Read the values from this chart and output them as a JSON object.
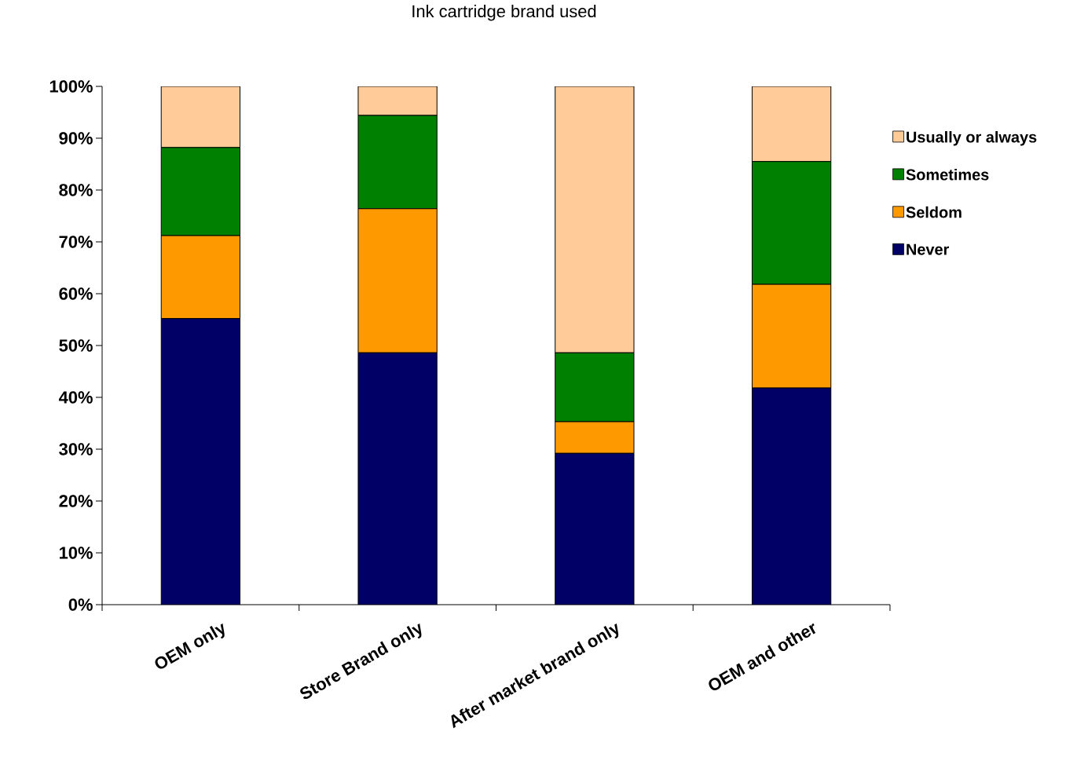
{
  "chart_data": {
    "type": "bar",
    "title": "Ink cartridge brand used",
    "stacked": true,
    "legend": "right",
    "categories": [
      "OEM only",
      "Store Brand only",
      "After market brand only",
      "OEM and other"
    ],
    "series": [
      {
        "name": "Never",
        "color": "#000066",
        "values": [
          55.2,
          48.6,
          29.2,
          41.8
        ]
      },
      {
        "name": "Seldom",
        "color": "#ff9900",
        "values": [
          16.0,
          27.8,
          6.1,
          20.0
        ]
      },
      {
        "name": "Sometimes",
        "color": "#008000",
        "values": [
          17.0,
          18.0,
          13.3,
          23.7
        ]
      },
      {
        "name": "Usually or always",
        "color": "#ffcc99",
        "values": [
          11.8,
          5.6,
          51.4,
          14.5
        ]
      }
    ],
    "ylim": [
      0,
      100
    ],
    "yticks": [
      {
        "value": 0,
        "label": "0%"
      },
      {
        "value": 10,
        "label": "10%"
      },
      {
        "value": 20,
        "label": "20%"
      },
      {
        "value": 30,
        "label": "30%"
      },
      {
        "value": 40,
        "label": "40%"
      },
      {
        "value": 50,
        "label": "50%"
      },
      {
        "value": 60,
        "label": "60%"
      },
      {
        "value": 70,
        "label": "70%"
      },
      {
        "value": 80,
        "label": "80%"
      },
      {
        "value": 90,
        "label": "90%"
      },
      {
        "value": 100,
        "label": "100%"
      }
    ]
  }
}
